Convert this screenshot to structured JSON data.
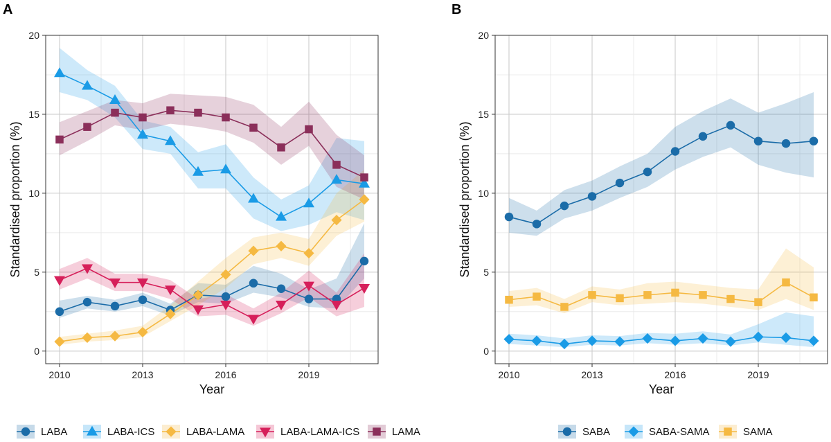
{
  "chart_data": [
    {
      "type": "line",
      "panel_label": "A",
      "xlabel": "Year",
      "ylabel": "Standardised proportion (%)",
      "xlim": [
        2009.5,
        2021.5
      ],
      "ylim": [
        -0.8,
        20
      ],
      "xticks": [
        2010,
        2013,
        2016,
        2019
      ],
      "yticks": [
        0,
        5,
        10,
        15,
        20
      ],
      "x": [
        2010,
        2011,
        2012,
        2013,
        2014,
        2015,
        2016,
        2017,
        2018,
        2019,
        2020,
        2021
      ],
      "legend_position": "bottom",
      "series": [
        {
          "name": "LABA",
          "color": "#1b6ca8",
          "marker": "circle",
          "values": [
            2.5,
            3.1,
            2.85,
            3.25,
            2.6,
            3.55,
            3.45,
            4.3,
            3.95,
            3.3,
            3.3,
            5.7
          ],
          "lower": [
            2.1,
            2.7,
            2.5,
            2.85,
            2.25,
            3.1,
            3.0,
            3.7,
            3.4,
            2.8,
            2.7,
            4.6
          ],
          "upper": [
            3.2,
            3.5,
            3.25,
            3.7,
            3.0,
            4.3,
            4.2,
            5.4,
            4.9,
            3.9,
            4.6,
            8.1
          ]
        },
        {
          "name": "LABA-ICS",
          "color": "#1a9be6",
          "marker": "triangle-up",
          "values": [
            17.6,
            16.8,
            15.9,
            13.7,
            13.3,
            11.35,
            11.5,
            9.65,
            8.5,
            9.35,
            10.85,
            10.6
          ],
          "lower": [
            16.4,
            15.9,
            14.8,
            12.8,
            12.5,
            10.3,
            10.3,
            8.4,
            7.6,
            8.0,
            8.8,
            8.3
          ],
          "upper": [
            19.2,
            17.8,
            16.8,
            14.6,
            14.2,
            12.6,
            13.1,
            11.0,
            9.6,
            10.5,
            13.5,
            13.3
          ]
        },
        {
          "name": "LABA-LAMA",
          "color": "#f5b942",
          "marker": "diamond",
          "values": [
            0.6,
            0.85,
            0.95,
            1.2,
            2.35,
            3.55,
            4.85,
            6.35,
            6.65,
            6.2,
            8.3,
            9.6
          ],
          "lower": [
            0.4,
            0.6,
            0.7,
            0.9,
            1.9,
            2.9,
            4.0,
            5.5,
            5.9,
            5.4,
            7.3,
            8.2
          ],
          "upper": [
            0.9,
            1.1,
            1.3,
            1.6,
            2.9,
            4.4,
            5.9,
            7.2,
            7.5,
            7.1,
            10.0,
            11.5
          ]
        },
        {
          "name": "LABA-LAMA-ICS",
          "color": "#d61f5a",
          "marker": "triangle-down",
          "values": [
            4.5,
            5.25,
            4.35,
            4.35,
            3.9,
            2.65,
            2.95,
            2.05,
            2.95,
            4.15,
            2.95,
            4.0
          ],
          "lower": [
            3.9,
            4.6,
            3.8,
            3.8,
            3.3,
            2.2,
            2.3,
            1.6,
            2.4,
            3.4,
            2.2,
            2.8
          ],
          "upper": [
            5.2,
            5.9,
            4.9,
            4.9,
            4.5,
            3.3,
            3.6,
            2.7,
            3.7,
            5.1,
            3.7,
            6.2
          ]
        },
        {
          "name": "LAMA",
          "color": "#8b2f5a",
          "marker": "square",
          "values": [
            13.4,
            14.2,
            15.1,
            14.8,
            15.25,
            15.1,
            14.8,
            14.15,
            12.9,
            14.05,
            11.8,
            11.0
          ],
          "lower": [
            12.4,
            13.3,
            14.3,
            14.0,
            14.4,
            14.2,
            13.9,
            13.2,
            11.8,
            13.0,
            10.4,
            9.6
          ],
          "upper": [
            14.5,
            15.2,
            15.9,
            15.7,
            16.3,
            16.2,
            16.1,
            15.6,
            14.2,
            15.8,
            13.7,
            12.4
          ]
        }
      ]
    },
    {
      "type": "line",
      "panel_label": "B",
      "xlabel": "Year",
      "ylabel": "Standardised proportion (%)",
      "xlim": [
        2009.5,
        2021.5
      ],
      "ylim": [
        -0.8,
        20
      ],
      "xticks": [
        2010,
        2013,
        2016,
        2019
      ],
      "yticks": [
        0,
        5,
        10,
        15,
        20
      ],
      "x": [
        2010,
        2011,
        2012,
        2013,
        2014,
        2015,
        2016,
        2017,
        2018,
        2019,
        2020,
        2021
      ],
      "legend_position": "bottom",
      "series": [
        {
          "name": "SABA",
          "color": "#1b6ca8",
          "marker": "circle",
          "values": [
            8.5,
            8.05,
            9.2,
            9.8,
            10.65,
            11.35,
            12.65,
            13.6,
            14.3,
            13.3,
            13.15,
            13.3
          ],
          "lower": [
            7.5,
            7.3,
            8.4,
            8.9,
            9.7,
            10.4,
            11.5,
            12.3,
            12.9,
            11.8,
            11.3,
            11.0
          ],
          "upper": [
            9.7,
            8.9,
            10.2,
            10.8,
            11.7,
            12.5,
            14.2,
            15.2,
            16.0,
            15.1,
            15.7,
            16.4
          ]
        },
        {
          "name": "SABA-SAMA",
          "color": "#1a9be6",
          "marker": "diamond",
          "values": [
            0.75,
            0.65,
            0.45,
            0.65,
            0.6,
            0.8,
            0.65,
            0.8,
            0.6,
            0.9,
            0.85,
            0.65
          ],
          "lower": [
            0.45,
            0.35,
            0.25,
            0.4,
            0.35,
            0.5,
            0.4,
            0.5,
            0.35,
            0.55,
            0.4,
            0.25
          ],
          "upper": [
            1.1,
            1.0,
            0.8,
            1.0,
            0.95,
            1.15,
            1.1,
            1.25,
            1.05,
            1.7,
            2.45,
            2.2
          ]
        },
        {
          "name": "SAMA",
          "color": "#f5b942",
          "marker": "square",
          "values": [
            3.25,
            3.45,
            2.8,
            3.55,
            3.35,
            3.55,
            3.7,
            3.55,
            3.3,
            3.1,
            4.35,
            3.4
          ],
          "lower": [
            2.8,
            2.9,
            2.4,
            3.1,
            2.9,
            3.0,
            3.1,
            3.0,
            2.8,
            2.6,
            3.3,
            2.6
          ],
          "upper": [
            3.8,
            4.0,
            3.3,
            4.1,
            3.9,
            4.3,
            4.4,
            4.2,
            4.0,
            3.9,
            6.5,
            5.3
          ]
        }
      ]
    }
  ]
}
